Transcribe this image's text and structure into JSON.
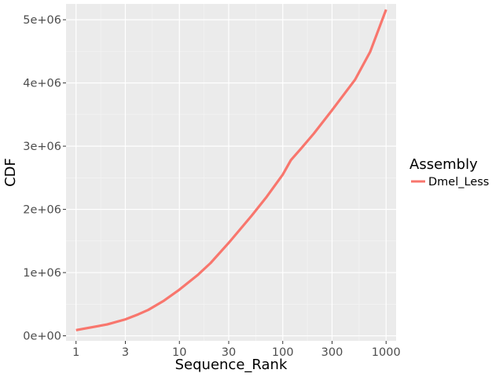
{
  "chart_data": {
    "type": "line",
    "xlabel": "Sequence_Rank",
    "ylabel": "CDF",
    "x_scale": "log10",
    "xlim": [
      0.8,
      1250
    ],
    "ylim": [
      -80000,
      5250000
    ],
    "x_ticks": [
      1,
      3,
      10,
      30,
      100,
      300,
      1000
    ],
    "x_tick_labels": [
      "1",
      "3",
      "10",
      "30",
      "100",
      "300",
      "1000"
    ],
    "y_ticks": [
      0,
      1000000,
      2000000,
      3000000,
      4000000,
      5000000
    ],
    "y_tick_labels": [
      "0e+00",
      "1e+06",
      "2e+06",
      "3e+06",
      "4e+06",
      "5e+06"
    ],
    "grid": true,
    "background": "#ebebeb",
    "legend": {
      "title": "Assembly",
      "position": "right"
    },
    "series": [
      {
        "name": "Dmel_Less",
        "color": "#f8766d",
        "x": [
          1,
          2,
          3,
          4,
          5,
          7,
          10,
          15,
          20,
          30,
          50,
          70,
          100,
          120,
          150,
          200,
          300,
          500,
          700,
          1000
        ],
        "y": [
          90000,
          180000,
          260000,
          340000,
          410000,
          550000,
          730000,
          960000,
          1150000,
          1470000,
          1900000,
          2200000,
          2550000,
          2780000,
          2960000,
          3200000,
          3570000,
          4050000,
          4490000,
          5160000
        ]
      }
    ]
  }
}
